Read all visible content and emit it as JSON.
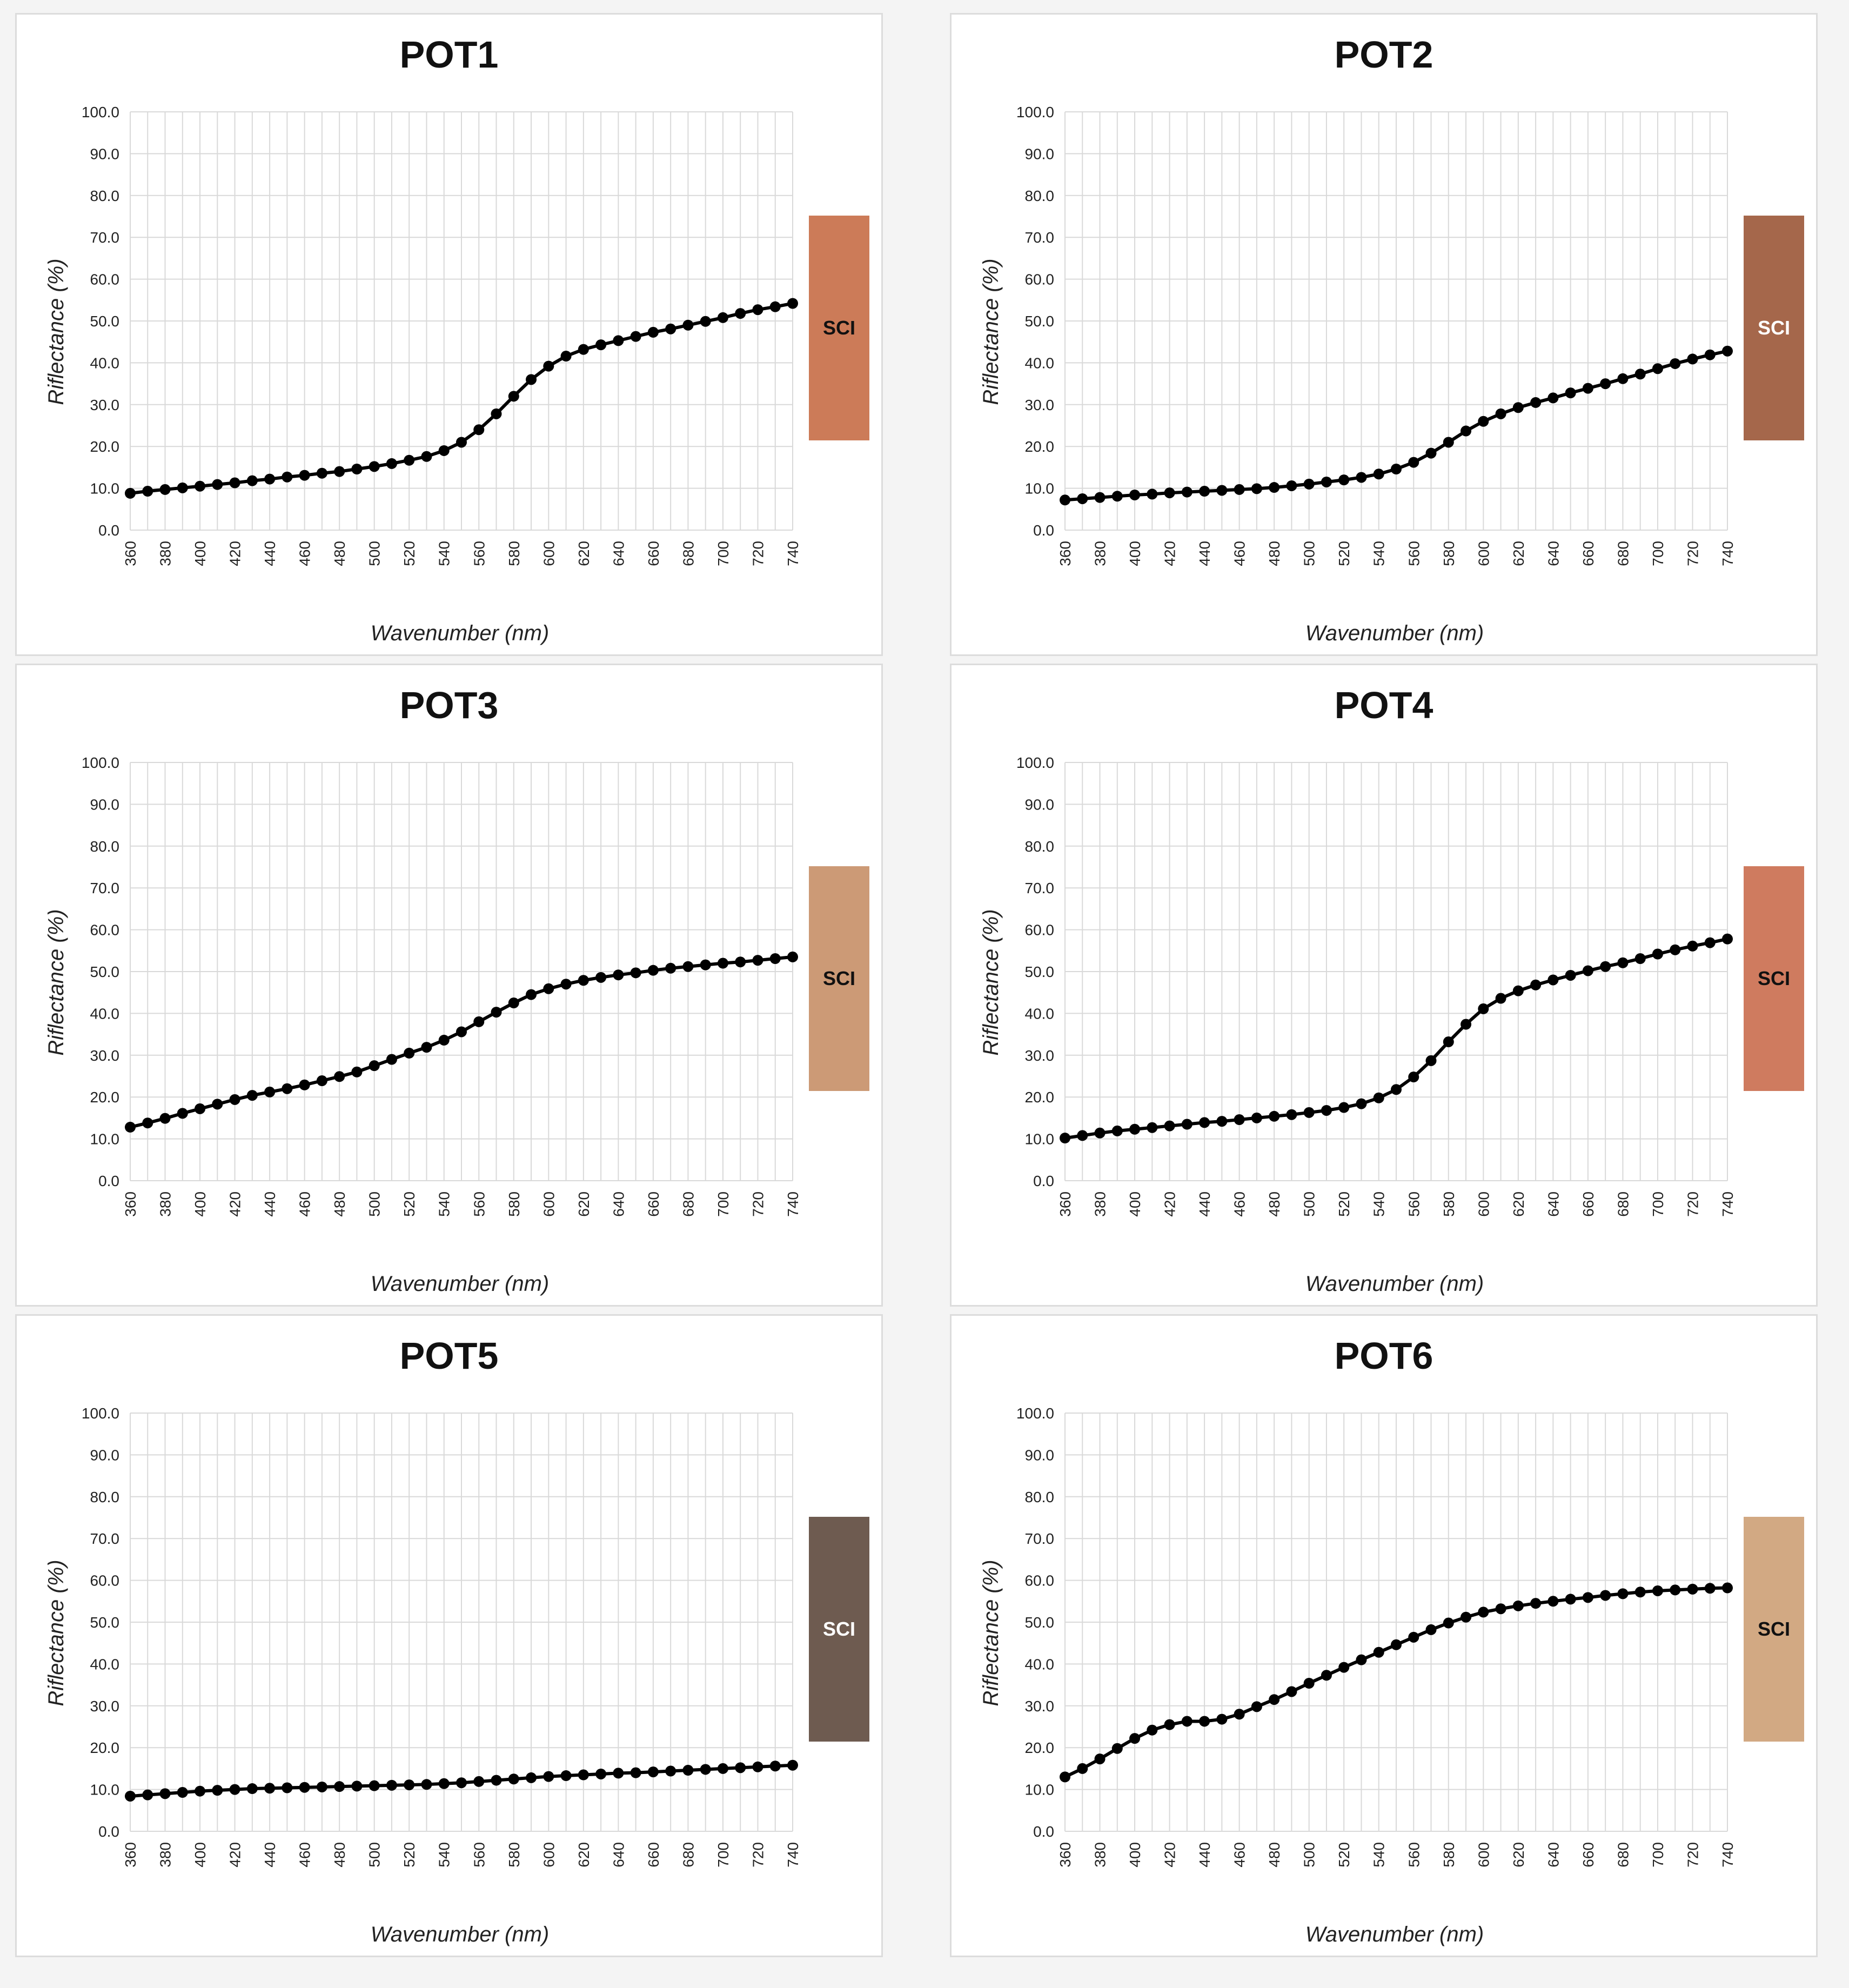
{
  "shared": {
    "xticks": [
      "360",
      "380",
      "400",
      "420",
      "440",
      "460",
      "480",
      "500",
      "520",
      "540",
      "560",
      "580",
      "600",
      "620",
      "640",
      "660",
      "680",
      "700",
      "720",
      "740"
    ],
    "yticks": [
      "0.0",
      "10.0",
      "20.0",
      "30.0",
      "40.0",
      "50.0",
      "60.0",
      "70.0",
      "80.0",
      "90.0",
      "100.0"
    ],
    "xlabel": "Wavenumber (nm)",
    "ylabel": "Riflectance (%)",
    "swatch_label": "SCI"
  },
  "chart_data": [
    {
      "type": "line",
      "title": "POT1",
      "xlabel": "Wavenumber (nm)",
      "ylabel": "Riflectance (%)",
      "ylim": [
        0,
        100
      ],
      "xlim": [
        360,
        740
      ],
      "grid": true,
      "swatch": {
        "label": "SCI",
        "color": "#cc7b58",
        "text_color": "#111111"
      },
      "x": [
        360,
        370,
        380,
        390,
        400,
        410,
        420,
        430,
        440,
        450,
        460,
        470,
        480,
        490,
        500,
        510,
        520,
        530,
        540,
        550,
        560,
        570,
        580,
        590,
        600,
        610,
        620,
        630,
        640,
        650,
        660,
        670,
        680,
        690,
        700,
        710,
        720,
        730,
        740
      ],
      "series": [
        {
          "values": [
            8.8,
            9.3,
            9.7,
            10.1,
            10.5,
            10.9,
            11.3,
            11.8,
            12.2,
            12.7,
            13.1,
            13.6,
            14.0,
            14.6,
            15.2,
            15.9,
            16.7,
            17.6,
            19.0,
            21.0,
            24.0,
            27.8,
            32.0,
            36.0,
            39.2,
            41.6,
            43.2,
            44.3,
            45.3,
            46.3,
            47.3,
            48.1,
            49.0,
            49.9,
            50.8,
            51.8,
            52.7,
            53.4,
            54.2
          ]
        }
      ]
    },
    {
      "type": "line",
      "title": "POT2",
      "xlabel": "Wavenumber (nm)",
      "ylabel": "Riflectance (%)",
      "ylim": [
        0,
        100
      ],
      "xlim": [
        360,
        740
      ],
      "grid": true,
      "swatch": {
        "label": "SCI",
        "color": "#a5674b",
        "text_color": "#ffffff"
      },
      "x": [
        360,
        370,
        380,
        390,
        400,
        410,
        420,
        430,
        440,
        450,
        460,
        470,
        480,
        490,
        500,
        510,
        520,
        530,
        540,
        550,
        560,
        570,
        580,
        590,
        600,
        610,
        620,
        630,
        640,
        650,
        660,
        670,
        680,
        690,
        700,
        710,
        720,
        730,
        740
      ],
      "series": [
        {
          "values": [
            7.2,
            7.5,
            7.8,
            8.1,
            8.4,
            8.6,
            8.9,
            9.1,
            9.3,
            9.5,
            9.7,
            9.9,
            10.2,
            10.6,
            11.0,
            11.5,
            12.0,
            12.6,
            13.4,
            14.6,
            16.2,
            18.4,
            21.0,
            23.7,
            26.0,
            27.8,
            29.3,
            30.5,
            31.6,
            32.8,
            33.9,
            35.0,
            36.2,
            37.3,
            38.6,
            39.8,
            40.9,
            41.9,
            42.8
          ]
        }
      ]
    },
    {
      "type": "line",
      "title": "POT3",
      "xlabel": "Wavenumber (nm)",
      "ylabel": "Riflectance (%)",
      "ylim": [
        0,
        100
      ],
      "xlim": [
        360,
        740
      ],
      "grid": true,
      "swatch": {
        "label": "SCI",
        "color": "#cc9a76",
        "text_color": "#111111"
      },
      "x": [
        360,
        370,
        380,
        390,
        400,
        410,
        420,
        430,
        440,
        450,
        460,
        470,
        480,
        490,
        500,
        510,
        520,
        530,
        540,
        550,
        560,
        570,
        580,
        590,
        600,
        610,
        620,
        630,
        640,
        650,
        660,
        670,
        680,
        690,
        700,
        710,
        720,
        730,
        740
      ],
      "series": [
        {
          "values": [
            12.8,
            13.8,
            14.9,
            16.1,
            17.2,
            18.3,
            19.4,
            20.4,
            21.2,
            22.0,
            22.9,
            23.9,
            24.9,
            26.0,
            27.5,
            29.0,
            30.5,
            31.9,
            33.6,
            35.6,
            38.0,
            40.3,
            42.5,
            44.5,
            45.9,
            47.0,
            47.9,
            48.6,
            49.2,
            49.7,
            50.3,
            50.8,
            51.2,
            51.6,
            52.0,
            52.3,
            52.7,
            53.1,
            53.5
          ]
        }
      ]
    },
    {
      "type": "line",
      "title": "POT4",
      "xlabel": "Wavenumber (nm)",
      "ylabel": "Riflectance (%)",
      "ylim": [
        0,
        100
      ],
      "xlim": [
        360,
        740
      ],
      "grid": true,
      "swatch": {
        "label": "SCI",
        "color": "#cf7b5f",
        "text_color": "#111111"
      },
      "x": [
        360,
        370,
        380,
        390,
        400,
        410,
        420,
        430,
        440,
        450,
        460,
        470,
        480,
        490,
        500,
        510,
        520,
        530,
        540,
        550,
        560,
        570,
        580,
        590,
        600,
        610,
        620,
        630,
        640,
        650,
        660,
        670,
        680,
        690,
        700,
        710,
        720,
        730,
        740
      ],
      "series": [
        {
          "values": [
            10.2,
            10.8,
            11.4,
            11.9,
            12.3,
            12.7,
            13.1,
            13.5,
            13.9,
            14.2,
            14.6,
            15.0,
            15.4,
            15.8,
            16.3,
            16.8,
            17.5,
            18.4,
            19.8,
            21.8,
            24.8,
            28.7,
            33.2,
            37.4,
            41.1,
            43.6,
            45.4,
            46.8,
            48.0,
            49.1,
            50.2,
            51.2,
            52.1,
            53.1,
            54.2,
            55.2,
            56.1,
            56.9,
            57.8
          ]
        }
      ]
    },
    {
      "type": "line",
      "title": "POT5",
      "xlabel": "Wavenumber (nm)",
      "ylabel": "Riflectance (%)",
      "ylim": [
        0,
        100
      ],
      "xlim": [
        360,
        740
      ],
      "grid": true,
      "swatch": {
        "label": "SCI",
        "color": "#6e5b50",
        "text_color": "#ffffff"
      },
      "x": [
        360,
        370,
        380,
        390,
        400,
        410,
        420,
        430,
        440,
        450,
        460,
        470,
        480,
        490,
        500,
        510,
        520,
        530,
        540,
        550,
        560,
        570,
        580,
        590,
        600,
        610,
        620,
        630,
        640,
        650,
        660,
        670,
        680,
        690,
        700,
        710,
        720,
        730,
        740
      ],
      "series": [
        {
          "values": [
            8.4,
            8.7,
            9.0,
            9.3,
            9.6,
            9.8,
            10.0,
            10.2,
            10.3,
            10.4,
            10.5,
            10.6,
            10.7,
            10.8,
            10.9,
            11.0,
            11.1,
            11.2,
            11.4,
            11.6,
            11.9,
            12.2,
            12.5,
            12.8,
            13.1,
            13.3,
            13.5,
            13.7,
            13.9,
            14.0,
            14.2,
            14.4,
            14.6,
            14.8,
            15.0,
            15.2,
            15.4,
            15.6,
            15.8
          ]
        }
      ]
    },
    {
      "type": "line",
      "title": "POT6",
      "xlabel": "Wavenumber (nm)",
      "ylabel": "Riflectance (%)",
      "ylim": [
        0,
        100
      ],
      "xlim": [
        360,
        740
      ],
      "grid": true,
      "swatch": {
        "label": "SCI",
        "color": "#d2a983",
        "text_color": "#111111"
      },
      "x": [
        360,
        370,
        380,
        390,
        400,
        410,
        420,
        430,
        440,
        450,
        460,
        470,
        480,
        490,
        500,
        510,
        520,
        530,
        540,
        550,
        560,
        570,
        580,
        590,
        600,
        610,
        620,
        630,
        640,
        650,
        660,
        670,
        680,
        690,
        700,
        710,
        720,
        730,
        740
      ],
      "series": [
        {
          "values": [
            13.0,
            15.0,
            17.3,
            19.8,
            22.2,
            24.2,
            25.5,
            26.3,
            26.3,
            26.8,
            28.0,
            29.8,
            31.5,
            33.4,
            35.4,
            37.3,
            39.2,
            41.0,
            42.8,
            44.6,
            46.4,
            48.2,
            49.8,
            51.2,
            52.4,
            53.2,
            53.9,
            54.5,
            55.0,
            55.5,
            55.9,
            56.4,
            56.8,
            57.2,
            57.5,
            57.7,
            57.9,
            58.1,
            58.2
          ]
        }
      ]
    }
  ]
}
